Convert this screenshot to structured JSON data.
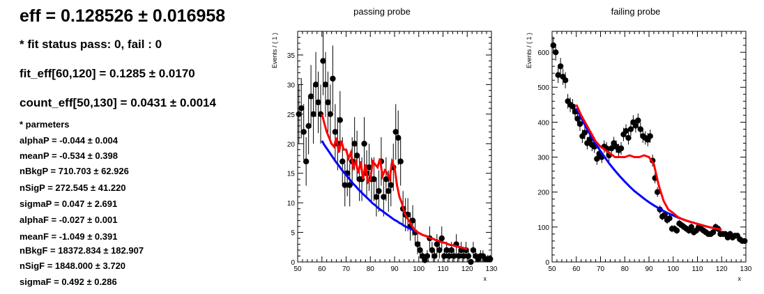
{
  "summary": {
    "title": "eff = 0.128526  ± 0.016958",
    "fit_status": "* fit status pass: 0, fail : 0",
    "fit_eff": "fit_eff[60,120] = 0.1285 ± 0.0170",
    "count_eff": "count_eff[50,130] = 0.0431 ± 0.0014",
    "params_header": "* parmeters",
    "params": [
      "alphaP = -0.044 ± 0.004",
      "meanP = -0.534 ± 0.398",
      "nBkgP = 710.703 ± 62.926",
      "nSigP = 272.545 ± 41.220",
      "sigmaP = 0.047 ± 2.691",
      "alphaF = -0.027 ± 0.001",
      "meanF = -1.049 ± 0.391",
      "nBkgF = 18372.834 ± 182.907",
      "nSigF = 1848.000 ± 3.720",
      "sigmaF = 0.492 ± 0.286"
    ]
  },
  "chart_data": [
    {
      "type": "scatter",
      "title": "passing probe",
      "xlabel": "x",
      "ylabel": "Events / ( 1 )",
      "xlim": [
        50,
        130
      ],
      "ylim": [
        0,
        39
      ],
      "xticks": [
        50,
        60,
        70,
        80,
        90,
        100,
        110,
        120,
        130
      ],
      "yticks": [
        0,
        5,
        10,
        15,
        20,
        25,
        30,
        35
      ],
      "colors": {
        "data": "#000000",
        "total": "#ff0000",
        "background": "#0000ff"
      },
      "points": {
        "x": [
          50.5,
          51.5,
          52.5,
          53.5,
          54.5,
          55.5,
          56.5,
          57.5,
          58.5,
          59.5,
          60.5,
          61.5,
          62.5,
          63.5,
          64.5,
          65.5,
          66.5,
          67.5,
          68.5,
          69.5,
          70.5,
          71.5,
          72.5,
          73.5,
          74.5,
          75.5,
          76.5,
          77.5,
          78.5,
          79.5,
          80.5,
          81.5,
          82.5,
          83.5,
          84.5,
          85.5,
          86.5,
          87.5,
          88.5,
          89.5,
          90.5,
          91.5,
          92.5,
          93.5,
          94.5,
          95.5,
          96.5,
          97.5,
          98.5,
          99.5,
          100.5,
          101.5,
          102.5,
          103.5,
          104.5,
          105.5,
          106.5,
          107.5,
          108.5,
          109.5,
          110.5,
          111.5,
          112.5,
          113.5,
          114.5,
          115.5,
          116.5,
          117.5,
          118.5,
          119.5,
          120.5,
          121.5,
          122.5,
          123.5,
          124.5,
          125.5,
          126.5,
          127.5,
          128.5,
          129.5
        ],
        "y": [
          25,
          26,
          22,
          17,
          23,
          28,
          25,
          30,
          27,
          25,
          34,
          30,
          27,
          25,
          31,
          22,
          20,
          24,
          17,
          13,
          15,
          13,
          17,
          20,
          18,
          14,
          14,
          20,
          15,
          16,
          14,
          14,
          11,
          12,
          17,
          11,
          14,
          12,
          13,
          16,
          22,
          21,
          17,
          9,
          8,
          8,
          6,
          7,
          5,
          3,
          2,
          1,
          0.3,
          1,
          4,
          2,
          1,
          3,
          2,
          4,
          1,
          2,
          1,
          2,
          1,
          3,
          1,
          2,
          1,
          2,
          1,
          0,
          2,
          1,
          0.5,
          1,
          1,
          0.5,
          0.5,
          0.5
        ],
        "err": [
          5,
          5.1,
          4.7,
          4.1,
          4.8,
          5.3,
          5,
          5.5,
          5.2,
          5,
          5.8,
          5.5,
          5.2,
          5,
          5.6,
          4.7,
          4.5,
          4.9,
          4.1,
          3.6,
          3.9,
          3.6,
          4.1,
          4.5,
          4.2,
          3.7,
          3.7,
          4.5,
          3.9,
          4,
          3.7,
          3.7,
          3.3,
          3.5,
          4.1,
          3.3,
          3.7,
          3.5,
          3.6,
          4,
          4.7,
          4.6,
          4.1,
          3,
          2.8,
          2.8,
          2.4,
          2.6,
          2.2,
          1.7,
          1.4,
          1,
          0.5,
          1,
          2,
          1.4,
          1,
          1.7,
          1.4,
          2,
          1,
          1.4,
          1,
          1.4,
          1,
          1.7,
          1,
          1.4,
          1,
          1.4,
          1,
          0.5,
          1.4,
          1,
          0.7,
          1,
          1,
          0.7,
          0.7,
          0.7
        ]
      },
      "curves": {
        "x": [
          60,
          61,
          62,
          63,
          64,
          65,
          66,
          67,
          68,
          69,
          70,
          71,
          72,
          73,
          74,
          75,
          76,
          77,
          78,
          79,
          80,
          81,
          82,
          83,
          84,
          85,
          86,
          87,
          88,
          89,
          90,
          91,
          92,
          93,
          94,
          95,
          96,
          97,
          98,
          99,
          100,
          101,
          102,
          103,
          104,
          105,
          106,
          107,
          108,
          109,
          110,
          111,
          112,
          113,
          114,
          115,
          116,
          117,
          118,
          119,
          120
        ],
        "background": [
          20.5,
          19.8,
          19.2,
          18.6,
          18.0,
          17.4,
          16.8,
          16.3,
          15.7,
          15.2,
          14.7,
          14.2,
          13.7,
          13.2,
          12.8,
          12.3,
          11.9,
          11.5,
          11.1,
          10.7,
          10.3,
          9.9,
          9.6,
          9.2,
          8.9,
          8.6,
          8.3,
          8.0,
          7.7,
          7.4,
          7.1,
          6.9,
          6.6,
          6.4,
          6.1,
          5.9,
          5.7,
          5.5,
          5.3,
          5.1,
          4.9,
          4.7,
          4.5,
          4.4,
          4.2,
          4.0,
          3.9,
          3.7,
          3.6,
          3.4,
          3.3,
          3.2,
          3.0,
          2.9,
          2.8,
          2.7,
          2.6,
          2.5,
          2.4,
          2.3,
          2.2
        ],
        "total": [
          25,
          23.5,
          22,
          21,
          20,
          19.5,
          21,
          18.5,
          20.5,
          19,
          19,
          17.5,
          18.5,
          16,
          17,
          15,
          17,
          14,
          16.5,
          13.5,
          14,
          17,
          16.5,
          16,
          17.5,
          14.5,
          15.5,
          15,
          14,
          17,
          16,
          13,
          11,
          10,
          8.5,
          7.5,
          7,
          6.2,
          5.6,
          5.2,
          4.9,
          4.7,
          4.5,
          4.4,
          4.2,
          4.0,
          3.9,
          3.7,
          3.6,
          3.4,
          3.3,
          3.2,
          3.0,
          2.9,
          2.8,
          2.7,
          2.6,
          2.5,
          2.4,
          2.3,
          2.2
        ]
      }
    },
    {
      "type": "scatter",
      "title": "failing probe",
      "xlabel": "x",
      "ylabel": "Events / ( 1 )",
      "xlim": [
        50,
        130
      ],
      "ylim": [
        0,
        660
      ],
      "xticks": [
        50,
        60,
        70,
        80,
        90,
        100,
        110,
        120,
        130
      ],
      "yticks": [
        0,
        100,
        200,
        300,
        400,
        500,
        600
      ],
      "colors": {
        "data": "#000000",
        "total": "#ff0000",
        "background": "#0000ff"
      },
      "points": {
        "x": [
          50.5,
          51.5,
          52.5,
          53.5,
          54.5,
          55.5,
          56.5,
          57.5,
          58.5,
          59.5,
          60.5,
          61.5,
          62.5,
          63.5,
          64.5,
          65.5,
          66.5,
          67.5,
          68.5,
          69.5,
          70.5,
          71.5,
          72.5,
          73.5,
          74.5,
          75.5,
          76.5,
          77.5,
          78.5,
          79.5,
          80.5,
          81.5,
          82.5,
          83.5,
          84.5,
          85.5,
          86.5,
          87.5,
          88.5,
          89.5,
          90.5,
          91.5,
          92.5,
          93.5,
          94.5,
          95.5,
          96.5,
          97.5,
          98.5,
          99.5,
          100.5,
          101.5,
          102.5,
          103.5,
          104.5,
          105.5,
          106.5,
          107.5,
          108.5,
          109.5,
          110.5,
          111.5,
          112.5,
          113.5,
          114.5,
          115.5,
          116.5,
          117.5,
          118.5,
          119.5,
          120.5,
          121.5,
          122.5,
          123.5,
          124.5,
          125.5,
          126.5,
          127.5,
          128.5,
          129.5
        ],
        "y": [
          620,
          600,
          535,
          560,
          530,
          520,
          460,
          450,
          445,
          430,
          410,
          395,
          360,
          370,
          340,
          350,
          335,
          330,
          295,
          310,
          300,
          330,
          325,
          305,
          325,
          340,
          330,
          320,
          325,
          365,
          375,
          355,
          380,
          400,
          390,
          405,
          380,
          360,
          355,
          350,
          360,
          290,
          240,
          200,
          150,
          130,
          135,
          120,
          125,
          95,
          95,
          90,
          110,
          105,
          100,
          95,
          90,
          100,
          85,
          90,
          100,
          95,
          90,
          85,
          80,
          80,
          85,
          100,
          95,
          80,
          80,
          80,
          70,
          80,
          70,
          75,
          75,
          65,
          60,
          60
        ],
        "err": [
          25,
          24,
          23,
          24,
          23,
          23,
          21,
          21,
          21,
          21,
          20,
          20,
          19,
          19,
          18,
          19,
          18,
          18,
          17,
          18,
          17,
          18,
          18,
          17,
          18,
          18,
          18,
          18,
          18,
          19,
          19,
          19,
          19,
          20,
          20,
          20,
          19,
          19,
          19,
          19,
          19,
          17,
          15,
          14,
          12,
          11,
          12,
          11,
          11,
          10,
          10,
          9.5,
          10.5,
          10.2,
          10,
          9.7,
          9.5,
          10,
          9.2,
          9.5,
          10,
          9.7,
          9.5,
          9.2,
          8.9,
          8.9,
          9.2,
          10,
          9.7,
          8.9,
          8.9,
          8.9,
          8.4,
          8.9,
          8.4,
          8.7,
          8.7,
          8.1,
          7.7,
          7.7
        ]
      },
      "curves": {
        "x": [
          60,
          62,
          64,
          66,
          68,
          70,
          72,
          74,
          76,
          78,
          80,
          82,
          84,
          86,
          88,
          90,
          92,
          94,
          96,
          98,
          100,
          102,
          104,
          106,
          108,
          110,
          112,
          114,
          116,
          118,
          120
        ],
        "background": [
          440,
          412,
          386,
          361,
          338,
          317,
          297,
          278,
          261,
          245,
          230,
          216,
          203,
          192,
          181,
          171,
          162,
          154,
          146,
          139,
          133,
          127,
          122,
          117,
          113,
          109,
          105,
          101,
          98,
          95,
          92
        ],
        "total": [
          450,
          420,
          395,
          370,
          345,
          330,
          320,
          310,
          300,
          300,
          300,
          305,
          300,
          300,
          305,
          300,
          280,
          220,
          175,
          150,
          140,
          128,
          122,
          117,
          113,
          109,
          105,
          101,
          98,
          95,
          92
        ]
      }
    }
  ]
}
